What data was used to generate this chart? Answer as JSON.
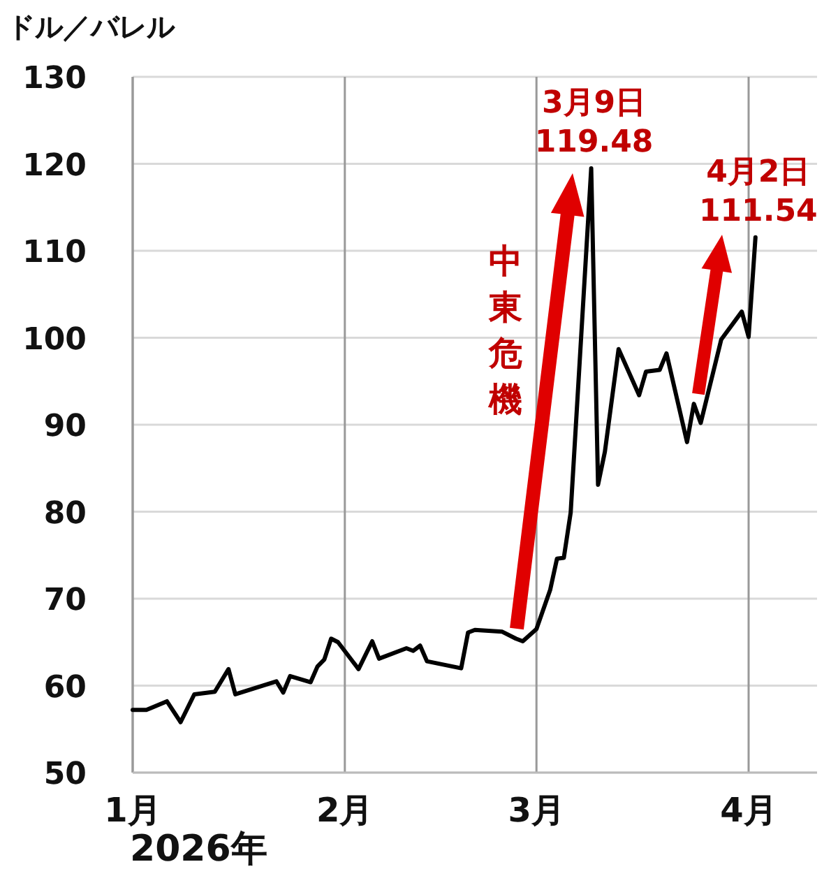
{
  "chart_data": {
    "type": "line",
    "ylabel": "ドル／バレル",
    "xlabel": "2026年",
    "x": [
      "2026-01-01",
      "2026-01-03",
      "2026-01-06",
      "2026-01-08",
      "2026-01-10",
      "2026-01-13",
      "2026-01-15",
      "2026-01-16",
      "2026-01-22",
      "2026-01-23",
      "2026-01-24",
      "2026-01-27",
      "2026-01-28",
      "2026-01-29",
      "2026-01-30",
      "2026-01-31",
      "2026-02-03",
      "2026-02-05",
      "2026-02-06",
      "2026-02-10",
      "2026-02-11",
      "2026-02-12",
      "2026-02-13",
      "2026-02-18",
      "2026-02-19",
      "2026-02-20",
      "2026-02-24",
      "2026-02-26",
      "2026-02-27",
      "2026-03-01",
      "2026-03-03",
      "2026-03-04",
      "2026-03-05",
      "2026-03-06",
      "2026-03-09",
      "2026-03-10",
      "2026-03-11",
      "2026-03-13",
      "2026-03-16",
      "2026-03-17",
      "2026-03-19",
      "2026-03-20",
      "2026-03-23",
      "2026-03-24",
      "2026-03-25",
      "2026-03-28",
      "2026-03-31",
      "2026-04-01",
      "2026-04-02"
    ],
    "series": [
      {
        "color": "#000000",
        "values": [
          57.2,
          57.2,
          58.2,
          55.8,
          59.0,
          59.3,
          61.9,
          59.0,
          60.5,
          59.2,
          61.1,
          60.4,
          62.2,
          63.0,
          65.4,
          65.0,
          61.9,
          65.1,
          63.1,
          64.3,
          64.0,
          64.6,
          62.8,
          62.0,
          66.1,
          66.4,
          66.2,
          65.4,
          65.1,
          66.5,
          71.0,
          74.6,
          74.7,
          79.9,
          119.48,
          83.1,
          86.9,
          98.7,
          93.4,
          96.1,
          96.3,
          98.2,
          88.0,
          92.4,
          90.2,
          99.8,
          103.0,
          100.1,
          111.54
        ]
      }
    ],
    "xlim": [
      "2026-01-01",
      "2026-04-11"
    ],
    "xticks": [
      {
        "value": "2026-01-01",
        "label": "1月"
      },
      {
        "value": "2026-02-01",
        "label": "2月"
      },
      {
        "value": "2026-03-01",
        "label": "3月"
      },
      {
        "value": "2026-04-01",
        "label": "4月"
      }
    ],
    "ylim": [
      50,
      130
    ],
    "yticks": [
      50,
      60,
      70,
      80,
      90,
      100,
      110,
      120,
      130
    ],
    "grid": true,
    "annotations": [
      "中東危機",
      {
        "text": "3月9日\n119.48",
        "x": "2026-03-09",
        "y": 119.48
      },
      {
        "text": "4月2日\n111.54",
        "x": "2026-04-02",
        "y": 111.54
      }
    ]
  }
}
